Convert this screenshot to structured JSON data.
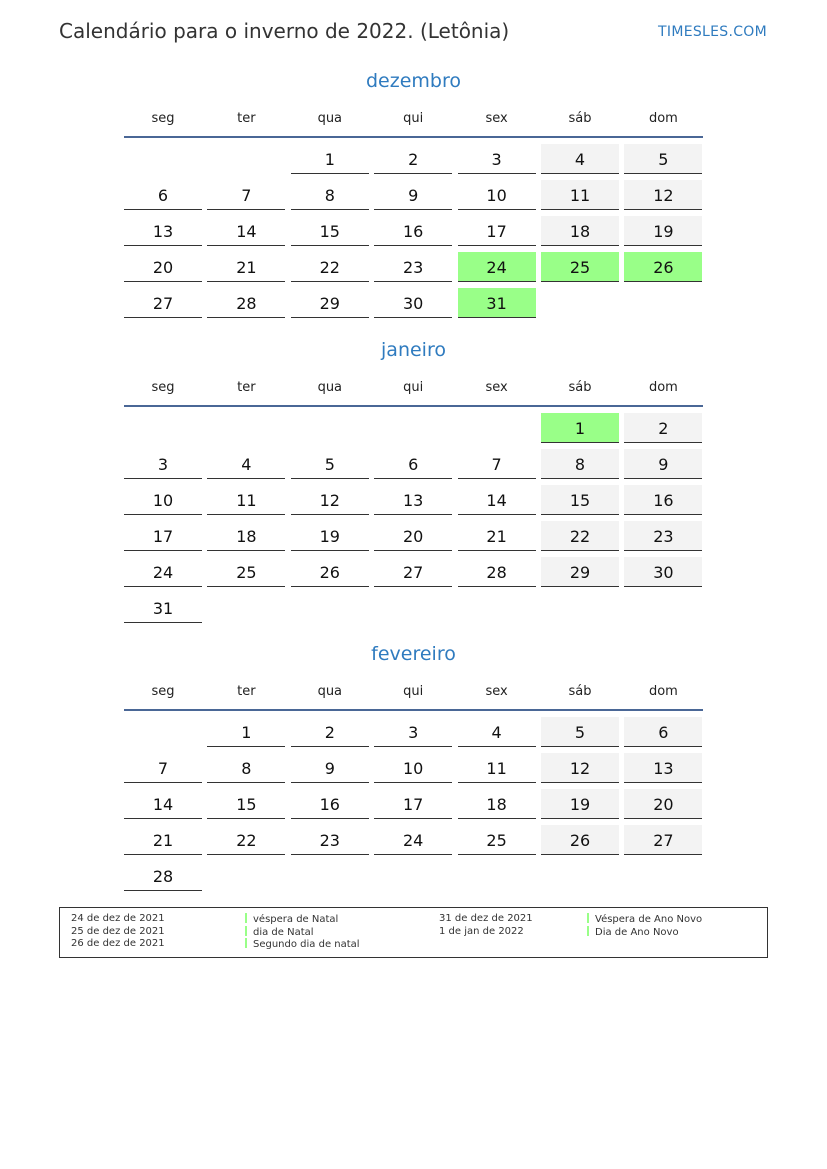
{
  "header": {
    "title": "Calendário para o inverno de 2022. (Letônia)",
    "brand": "TIMESLES.COM"
  },
  "weekdays": [
    "seg",
    "ter",
    "qua",
    "qui",
    "sex",
    "sáb",
    "dom"
  ],
  "colors": {
    "holiday": "#99ff88",
    "weekend": "#f3f3f3",
    "accent": "#2f7bbf"
  },
  "months": [
    {
      "name": "dezembro",
      "start_weekday": 2,
      "days": 31,
      "holidays": [
        24,
        25,
        26,
        31
      ]
    },
    {
      "name": "janeiro",
      "start_weekday": 5,
      "days": 31,
      "holidays": [
        1
      ]
    },
    {
      "name": "fevereiro",
      "start_weekday": 1,
      "days": 28,
      "holidays": []
    }
  ],
  "legend": {
    "col1": [
      {
        "date": "24 de dez de 2021",
        "name": "véspera de Natal"
      },
      {
        "date": "25 de dez de 2021",
        "name": "dia de Natal"
      },
      {
        "date": "26 de dez de 2021",
        "name": "Segundo dia de natal"
      }
    ],
    "col2": [
      {
        "date": "31 de dez de 2021",
        "name": "Véspera de Ano Novo"
      },
      {
        "date": "1 de jan de 2022",
        "name": "Dia de Ano Novo"
      }
    ]
  }
}
